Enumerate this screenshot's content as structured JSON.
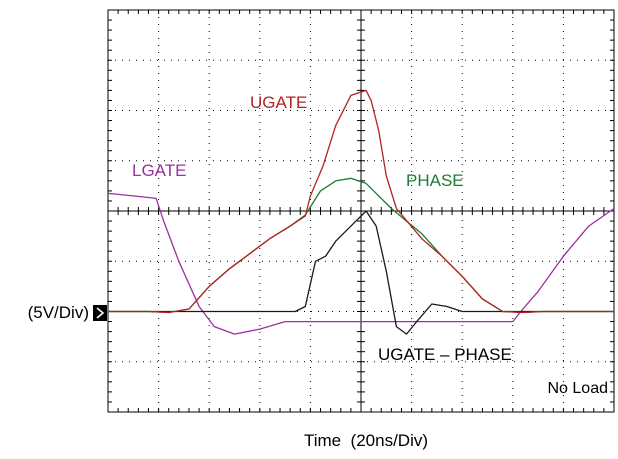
{
  "chart_data": {
    "type": "line",
    "xlabel": "Time  (20ns/Div)",
    "ylabel": "(5V/Div)",
    "xlim": [
      0,
      10
    ],
    "ylim": [
      -4,
      4
    ],
    "grid": true,
    "annotations": [
      "No Load"
    ],
    "series": [
      {
        "name": "UGATE",
        "color": "#b22222",
        "x": [
          0,
          0.4,
          0.8,
          1.2,
          1.6,
          2.0,
          2.4,
          2.8,
          3.2,
          3.6,
          3.9,
          4.0,
          4.25,
          4.5,
          4.8,
          5.1,
          5.2,
          5.35,
          5.5,
          5.7,
          5.95,
          6.2,
          6.6,
          7.0,
          7.4,
          7.8,
          8.2,
          8.6,
          9.0,
          9.5,
          10
        ],
        "y": [
          -2.0,
          -2.0,
          -2.0,
          -2.02,
          -1.95,
          -1.5,
          -1.15,
          -0.85,
          -0.55,
          -0.3,
          -0.1,
          0.3,
          0.9,
          1.7,
          2.3,
          2.4,
          2.2,
          1.6,
          0.7,
          0.05,
          -0.25,
          -0.55,
          -0.9,
          -1.3,
          -1.75,
          -2.0,
          -2.02,
          -2.0,
          -2.0,
          -2.0,
          -2.0
        ]
      },
      {
        "name": "PHASE",
        "color": "#1e7b34",
        "x": [
          0,
          0.4,
          0.8,
          1.2,
          1.6,
          2.0,
          2.4,
          2.8,
          3.2,
          3.6,
          3.9,
          4.2,
          4.5,
          4.8,
          5.1,
          5.35,
          5.6,
          5.9,
          6.2,
          6.6,
          7.0,
          7.4,
          7.8,
          8.2,
          8.6,
          9.0,
          9.5,
          10
        ],
        "y": [
          -2.0,
          -2.0,
          -2.0,
          -2.02,
          -1.95,
          -1.5,
          -1.15,
          -0.85,
          -0.55,
          -0.3,
          -0.08,
          0.4,
          0.6,
          0.65,
          0.55,
          0.3,
          0.05,
          -0.2,
          -0.45,
          -0.9,
          -1.3,
          -1.75,
          -2.0,
          -2.02,
          -2.0,
          -2.0,
          -2.0,
          -2.0
        ]
      },
      {
        "name": "LGATE",
        "color": "#9b2fa0",
        "x": [
          0,
          0.5,
          0.95,
          1.1,
          1.4,
          1.8,
          2.1,
          2.5,
          3.0,
          3.5,
          4.0,
          5.0,
          6.0,
          7.0,
          8.0,
          8.2,
          8.5,
          9.0,
          9.5,
          10
        ],
        "y": [
          0.35,
          0.3,
          0.25,
          -0.2,
          -1.0,
          -1.9,
          -2.3,
          -2.45,
          -2.35,
          -2.2,
          -2.2,
          -2.2,
          -2.2,
          -2.2,
          -2.2,
          -1.95,
          -1.6,
          -0.9,
          -0.3,
          0.05
        ]
      },
      {
        "name": "UGATE – PHASE",
        "color": "#1a1a1a",
        "x": [
          0,
          1.0,
          2.0,
          3.0,
          3.7,
          3.9,
          4.1,
          4.3,
          4.5,
          4.8,
          5.1,
          5.3,
          5.5,
          5.7,
          5.9,
          6.1,
          6.4,
          6.7,
          7.0,
          7.5,
          8.0,
          8.5,
          9.0,
          10
        ],
        "y": [
          -2.0,
          -2.0,
          -2.0,
          -2.0,
          -2.0,
          -1.9,
          -1.0,
          -0.9,
          -0.6,
          -0.3,
          0.0,
          -0.3,
          -1.2,
          -2.3,
          -2.45,
          -2.2,
          -1.85,
          -1.9,
          -2.0,
          -2.0,
          -2.0,
          -2.0,
          -2.0,
          -2.0
        ]
      }
    ]
  }
}
